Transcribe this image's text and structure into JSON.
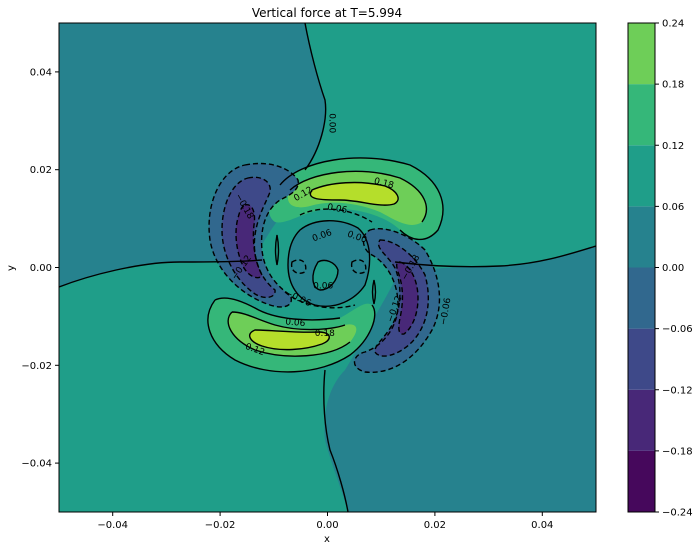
{
  "chart_data": {
    "type": "contour",
    "title": "Vertical force at T=5.994",
    "xlabel": "x",
    "ylabel": "y",
    "xlim": [
      -0.05,
      0.05
    ],
    "ylim": [
      -0.05,
      0.05
    ],
    "x_ticks": [
      -0.04,
      -0.02,
      0.0,
      0.02,
      0.04
    ],
    "x_tick_labels": [
      "−0.04",
      "−0.02",
      "0.00",
      "0.02",
      "0.04"
    ],
    "y_ticks": [
      -0.04,
      -0.02,
      0.0,
      0.02,
      0.04
    ],
    "y_tick_labels": [
      "−0.04",
      "−0.02",
      "0.00",
      "0.02",
      "0.04"
    ],
    "colorbar": {
      "levels": [
        -0.24,
        -0.18,
        -0.12,
        -0.06,
        0.0,
        0.06,
        0.12,
        0.18,
        0.24
      ],
      "tick_labels": [
        "−0.24",
        "−0.18",
        "−0.12",
        "−0.06",
        "0.00",
        "0.06",
        "0.12",
        "0.18",
        "0.24"
      ],
      "colors": [
        "#46085c",
        "#482878",
        "#3e4989",
        "#31688e",
        "#26828e",
        "#1f9e89",
        "#35b779",
        "#6ece58",
        "#b5de2b"
      ]
    },
    "contour_labels": [
      {
        "text": "0.00",
        "x": 0.0008,
        "y": 0.0295,
        "rotate": 90
      },
      {
        "text": "0.18",
        "x": 0.0105,
        "y": 0.0172,
        "rotate": 15
      },
      {
        "text": "0.12",
        "x": -0.0045,
        "y": 0.015,
        "rotate": -30
      },
      {
        "text": "0.06",
        "x": 0.0018,
        "y": 0.012,
        "rotate": 10
      },
      {
        "text": "0.06",
        "x": -0.001,
        "y": 0.0065,
        "rotate": -20
      },
      {
        "text": "0.00",
        "x": 0.0055,
        "y": 0.0062,
        "rotate": 20
      },
      {
        "text": "0.06",
        "x": -0.0008,
        "y": -0.0038,
        "rotate": 0
      },
      {
        "text": "−0.06",
        "x": -0.0055,
        "y": -0.0063,
        "rotate": 25
      },
      {
        "text": "0.06",
        "x": -0.006,
        "y": -0.0113,
        "rotate": 5
      },
      {
        "text": "0.18",
        "x": -0.0005,
        "y": -0.0135,
        "rotate": 0
      },
      {
        "text": "0.12",
        "x": -0.0135,
        "y": -0.0168,
        "rotate": 20
      },
      {
        "text": "−0.18",
        "x": -0.0155,
        "y": 0.0125,
        "rotate": 60
      },
      {
        "text": "−0.12",
        "x": -0.016,
        "y": 0.0,
        "rotate": -55
      },
      {
        "text": "−0.18",
        "x": 0.0155,
        "y": 0.0,
        "rotate": -60
      },
      {
        "text": "−0.12",
        "x": 0.0125,
        "y": -0.0085,
        "rotate": -70
      },
      {
        "text": "−0.06",
        "x": 0.022,
        "y": -0.009,
        "rotate": -80
      }
    ]
  }
}
